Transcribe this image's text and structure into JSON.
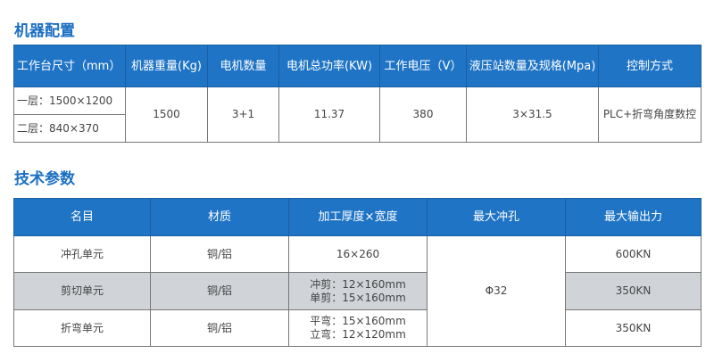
{
  "machine_config": {
    "title": "机器配置",
    "headers": [
      "工作台尺寸（mm）",
      "机器重量(Kg)",
      "电机数量",
      "电机总功率(KW)",
      "工作电压（V）",
      "液压站数量及规格(Mpa)",
      "控制方式"
    ],
    "table_size": [
      "一层：1500×1200",
      "二层：840×370"
    ],
    "weight": "1500",
    "motors": "3+1",
    "power": "11.37",
    "voltage": "380",
    "hydraulic": "3×31.5",
    "control": "PLC+折弯角度数控"
  },
  "tech_params": {
    "title": "技术参数",
    "headers": [
      "名目",
      "材质",
      "加工厚度×宽度",
      "最大冲孔",
      "最大输出力"
    ],
    "max_punch": "Φ32",
    "rows": [
      {
        "name": "冲孔单元",
        "material": "铜/铝",
        "size": [
          "16×260"
        ],
        "force": "600KN"
      },
      {
        "name": "剪切单元",
        "material": "铜/铝",
        "size": [
          "冲剪：12×160mm",
          "单剪：15×160mm"
        ],
        "force": "350KN"
      },
      {
        "name": "折弯单元",
        "material": "铜/铝",
        "size": [
          "平弯：15×160mm",
          "立弯：12×120mm"
        ],
        "force": "350KN"
      }
    ]
  }
}
